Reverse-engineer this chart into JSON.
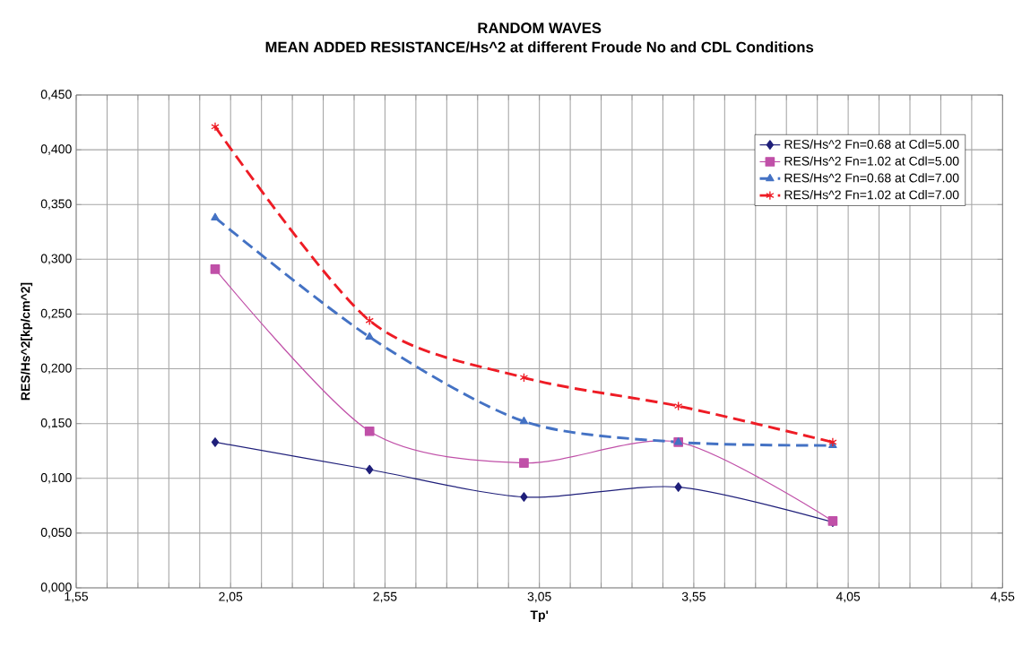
{
  "chart_data": {
    "type": "line",
    "title": "RANDOM WAVES",
    "subtitle": "MEAN  ADDED RESISTANCE/Hs^2 at different Froude No and CDL Conditions",
    "xlabel": "Tp'",
    "ylabel": "RES/Hs^2[kp/cm^2]",
    "x": [
      2.0,
      2.5,
      3.0,
      3.5,
      4.0
    ],
    "series": [
      {
        "name": "RES/Hs^2 Fn=0.68 at Cdl=5.00",
        "color": "#1f1f7a",
        "marker": "diamond",
        "line_style": "solid",
        "values": [
          0.133,
          0.108,
          0.083,
          0.092,
          0.06
        ]
      },
      {
        "name": "RES/Hs^2 Fn=1.02 at Cdl=5.00",
        "color": "#c050a8",
        "marker": "square",
        "line_style": "solid",
        "values": [
          0.291,
          0.143,
          0.114,
          0.133,
          0.061
        ]
      },
      {
        "name": "RES/Hs^2 Fn=0.68 at Cdl=7.00",
        "color": "#4472c4",
        "marker": "triangle",
        "line_style": "dashed",
        "values": [
          0.338,
          0.229,
          0.152,
          0.133,
          0.13
        ]
      },
      {
        "name": "RES/Hs^2 Fn=1.02 at Cdl=7.00",
        "color": "#ee1c25",
        "marker": "cross",
        "line_style": "dashed",
        "values": [
          0.421,
          0.244,
          0.192,
          0.166,
          0.133
        ]
      }
    ],
    "xlim": [
      1.55,
      4.55
    ],
    "xticks": [
      {
        "value": 1.55,
        "label": "1,55"
      },
      {
        "value": 1.65,
        "label": null
      },
      {
        "value": 1.75,
        "label": null
      },
      {
        "value": 1.85,
        "label": null
      },
      {
        "value": 1.95,
        "label": null
      },
      {
        "value": 2.05,
        "label": "2,05"
      },
      {
        "value": 2.15,
        "label": null
      },
      {
        "value": 2.25,
        "label": null
      },
      {
        "value": 2.35,
        "label": null
      },
      {
        "value": 2.45,
        "label": null
      },
      {
        "value": 2.55,
        "label": "2,55"
      },
      {
        "value": 2.65,
        "label": null
      },
      {
        "value": 2.75,
        "label": null
      },
      {
        "value": 2.85,
        "label": null
      },
      {
        "value": 2.95,
        "label": null
      },
      {
        "value": 3.05,
        "label": "3,05"
      },
      {
        "value": 3.15,
        "label": null
      },
      {
        "value": 3.25,
        "label": null
      },
      {
        "value": 3.35,
        "label": null
      },
      {
        "value": 3.45,
        "label": null
      },
      {
        "value": 3.55,
        "label": "3,55"
      },
      {
        "value": 3.65,
        "label": null
      },
      {
        "value": 3.75,
        "label": null
      },
      {
        "value": 3.85,
        "label": null
      },
      {
        "value": 3.95,
        "label": null
      },
      {
        "value": 4.05,
        "label": "4,05"
      },
      {
        "value": 4.15,
        "label": null
      },
      {
        "value": 4.25,
        "label": null
      },
      {
        "value": 4.35,
        "label": null
      },
      {
        "value": 4.45,
        "label": null
      },
      {
        "value": 4.55,
        "label": "4,55"
      }
    ],
    "ylim": [
      0,
      0.45
    ],
    "yticks": [
      {
        "value": 0,
        "label": "0,000"
      },
      {
        "value": 0.05,
        "label": "0,050"
      },
      {
        "value": 0.1,
        "label": "0,100"
      },
      {
        "value": 0.15,
        "label": "0,150"
      },
      {
        "value": 0.2,
        "label": "0,200"
      },
      {
        "value": 0.25,
        "label": "0,250"
      },
      {
        "value": 0.3,
        "label": "0,300"
      },
      {
        "value": 0.35,
        "label": "0,350"
      },
      {
        "value": 0.4,
        "label": "0,400"
      },
      {
        "value": 0.45,
        "label": "0,450"
      }
    ],
    "grid": true,
    "legend": "top right"
  }
}
